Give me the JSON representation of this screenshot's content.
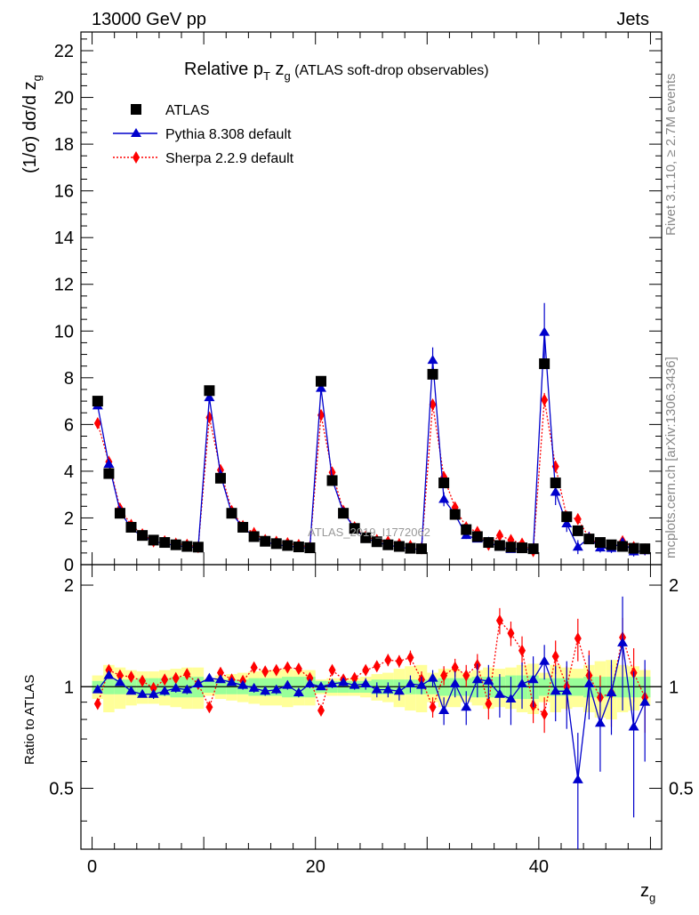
{
  "header": {
    "left": "13000 GeV pp",
    "right": "Jets"
  },
  "side_labels": {
    "rivet": "Rivet 3.1.10, ≥ 2.7M events",
    "mcplots": "mcplots.cern.ch [arXiv:1306.3436]"
  },
  "watermark": "ATLAS_2019_I1772062",
  "chart_data": [
    {
      "type": "scatter",
      "title_main": "Relative p",
      "title_sub": "T",
      "title_zg": " z",
      "title_zg_sub": "g",
      "title_rest": " (ATLAS soft-drop observables)",
      "ylabel": "(1/σ) dσ/d z",
      "ylabel_sub": "g",
      "xlabel": "z",
      "xlabel_sub": "g",
      "xlim": [
        -1,
        51
      ],
      "ylim": [
        0,
        22.8
      ],
      "yticks": [
        0,
        2,
        4,
        6,
        8,
        10,
        12,
        14,
        16,
        18,
        20,
        22
      ],
      "xticks": [
        0,
        20,
        40
      ],
      "x": [
        0.5,
        1.5,
        2.5,
        3.5,
        4.5,
        5.5,
        6.5,
        7.5,
        8.5,
        9.5,
        10.5,
        11.5,
        12.5,
        13.5,
        14.5,
        15.5,
        16.5,
        17.5,
        18.5,
        19.5,
        20.5,
        21.5,
        22.5,
        23.5,
        24.5,
        25.5,
        26.5,
        27.5,
        28.5,
        29.5,
        30.5,
        31.5,
        32.5,
        33.5,
        34.5,
        35.5,
        36.5,
        37.5,
        38.5,
        39.5,
        40.5,
        41.5,
        42.5,
        43.5,
        44.5,
        45.5,
        46.5,
        47.5,
        48.5,
        49.5
      ],
      "series": [
        {
          "name": "ATLAS",
          "color": "#000000",
          "marker": "square",
          "values": [
            7.0,
            3.9,
            2.2,
            1.6,
            1.25,
            1.05,
            0.95,
            0.85,
            0.78,
            0.75,
            7.45,
            3.7,
            2.2,
            1.6,
            1.2,
            1.0,
            0.9,
            0.82,
            0.76,
            0.72,
            7.85,
            3.6,
            2.2,
            1.55,
            1.15,
            0.98,
            0.85,
            0.78,
            0.7,
            0.68,
            8.15,
            3.5,
            2.15,
            1.5,
            1.2,
            0.95,
            0.82,
            0.75,
            0.72,
            0.68,
            8.6,
            3.5,
            2.05,
            1.45,
            1.1,
            0.95,
            0.85,
            0.78,
            0.7,
            0.68
          ]
        },
        {
          "name": "Pythia 8.308 default",
          "color": "#0000cc",
          "marker": "triangle",
          "line": "solid",
          "values": [
            6.8,
            4.3,
            2.3,
            1.55,
            1.2,
            1.0,
            0.9,
            0.82,
            0.76,
            0.72,
            7.15,
            3.85,
            2.2,
            1.6,
            1.2,
            0.98,
            0.85,
            0.8,
            0.74,
            0.7,
            7.55,
            3.65,
            2.25,
            1.55,
            1.15,
            0.95,
            0.84,
            0.75,
            0.68,
            0.65,
            8.75,
            2.8,
            2.15,
            1.25,
            1.1,
            0.98,
            0.75,
            0.65,
            0.7,
            0.62,
            9.95,
            3.1,
            1.75,
            0.75,
            1.15,
            0.72,
            0.7,
            0.95,
            0.55,
            0.6
          ],
          "errors": [
            0.05,
            0.05,
            0.04,
            0.03,
            0.03,
            0.03,
            0.03,
            0.03,
            0.03,
            0.03,
            0.1,
            0.07,
            0.05,
            0.04,
            0.04,
            0.03,
            0.03,
            0.03,
            0.03,
            0.03,
            0.15,
            0.1,
            0.06,
            0.05,
            0.04,
            0.04,
            0.04,
            0.04,
            0.04,
            0.04,
            0.55,
            0.3,
            0.2,
            0.15,
            0.12,
            0.1,
            0.1,
            0.1,
            0.1,
            0.1,
            1.25,
            0.55,
            0.35,
            0.3,
            0.25,
            0.2,
            0.2,
            0.2,
            0.2,
            0.2
          ]
        },
        {
          "name": "Sherpa 2.2.9 default",
          "color": "#ff0000",
          "marker": "diamond",
          "line": "dotted",
          "values": [
            6.05,
            4.4,
            2.4,
            1.7,
            1.3,
            1.0,
            1.0,
            0.9,
            0.85,
            0.75,
            6.3,
            4.05,
            2.3,
            1.65,
            1.35,
            1.05,
            0.98,
            0.92,
            0.84,
            0.75,
            6.4,
            3.95,
            2.3,
            1.6,
            1.2,
            1.05,
            0.98,
            0.88,
            0.8,
            0.7,
            6.85,
            3.75,
            2.45,
            1.6,
            1.4,
            0.85,
            1.25,
            1.05,
            0.9,
            0.58,
            7.05,
            4.2,
            2.05,
            1.95,
            1.15,
            0.85,
            0.8,
            1.0,
            0.75,
            0.65
          ],
          "errors": [
            0.05,
            0.05,
            0.04,
            0.03,
            0.03,
            0.03,
            0.03,
            0.03,
            0.03,
            0.03,
            0.08,
            0.06,
            0.05,
            0.04,
            0.04,
            0.03,
            0.03,
            0.03,
            0.03,
            0.03,
            0.1,
            0.08,
            0.06,
            0.05,
            0.04,
            0.04,
            0.04,
            0.04,
            0.04,
            0.04,
            0.2,
            0.15,
            0.12,
            0.1,
            0.1,
            0.1,
            0.1,
            0.1,
            0.1,
            0.1,
            0.3,
            0.25,
            0.2,
            0.2,
            0.15,
            0.15,
            0.15,
            0.15,
            0.15,
            0.15
          ]
        }
      ]
    },
    {
      "type": "scatter",
      "ylabel": "Ratio to ATLAS",
      "ylim": [
        0.33,
        2.3
      ],
      "yticks": [
        0.5,
        1,
        2
      ],
      "ytick_labels": [
        "0.5",
        "1",
        "2"
      ],
      "band_inner": [
        0.04,
        0.05,
        0.05,
        0.05,
        0.06,
        0.06,
        0.06,
        0.07,
        0.07,
        0.07,
        0.04,
        0.05,
        0.05,
        0.05,
        0.06,
        0.06,
        0.06,
        0.07,
        0.07,
        0.07,
        0.04,
        0.04,
        0.04,
        0.04,
        0.04,
        0.05,
        0.05,
        0.05,
        0.05,
        0.05,
        0.05,
        0.06,
        0.06,
        0.06,
        0.07,
        0.07,
        0.07,
        0.08,
        0.08,
        0.08,
        0.06,
        0.06,
        0.06,
        0.06,
        0.07,
        0.07,
        0.07,
        0.07,
        0.07,
        0.07
      ],
      "band_outer": [
        0.08,
        0.16,
        0.14,
        0.12,
        0.11,
        0.11,
        0.12,
        0.13,
        0.14,
        0.14,
        0.06,
        0.08,
        0.09,
        0.1,
        0.11,
        0.12,
        0.12,
        0.13,
        0.12,
        0.12,
        0.05,
        0.06,
        0.06,
        0.06,
        0.07,
        0.09,
        0.1,
        0.13,
        0.15,
        0.16,
        0.1,
        0.13,
        0.13,
        0.1,
        0.12,
        0.14,
        0.13,
        0.14,
        0.16,
        0.17,
        0.1,
        0.16,
        0.14,
        0.13,
        0.16,
        0.19,
        0.2,
        0.16,
        0.15,
        0.12
      ],
      "series": [
        {
          "name": "Pythia 8.308 default",
          "color": "#0000cc",
          "values": [
            0.98,
            1.08,
            1.03,
            0.97,
            0.95,
            0.95,
            0.97,
            0.99,
            0.98,
            1.02,
            1.06,
            1.05,
            1.03,
            1.01,
            0.99,
            0.97,
            0.98,
            1.01,
            0.96,
            1.02,
            1.0,
            1.02,
            1.03,
            1.01,
            1.02,
            0.98,
            0.98,
            0.97,
            1.02,
            1.01,
            1.06,
            0.85,
            1.02,
            0.87,
            1.05,
            1.04,
            0.95,
            0.92,
            1.02,
            1.05,
            1.19,
            0.97,
            0.97,
            0.53,
            1.02,
            0.78,
            0.96,
            1.35,
            0.76,
            0.9
          ],
          "errors": [
            0.02,
            0.02,
            0.02,
            0.02,
            0.02,
            0.03,
            0.03,
            0.03,
            0.03,
            0.03,
            0.02,
            0.02,
            0.02,
            0.03,
            0.03,
            0.03,
            0.03,
            0.03,
            0.03,
            0.03,
            0.02,
            0.03,
            0.03,
            0.03,
            0.04,
            0.05,
            0.05,
            0.06,
            0.06,
            0.06,
            0.06,
            0.08,
            0.09,
            0.1,
            0.12,
            0.12,
            0.14,
            0.15,
            0.16,
            0.18,
            0.14,
            0.18,
            0.22,
            0.2,
            0.22,
            0.22,
            0.24,
            0.5,
            0.35,
            0.3
          ]
        },
        {
          "name": "Sherpa 2.2.9 default",
          "color": "#ff0000",
          "values": [
            0.89,
            1.12,
            1.08,
            1.07,
            1.04,
            0.99,
            1.05,
            1.06,
            1.09,
            1.02,
            0.87,
            1.1,
            1.05,
            1.04,
            1.14,
            1.11,
            1.12,
            1.14,
            1.13,
            1.06,
            0.85,
            1.12,
            1.05,
            1.06,
            1.12,
            1.15,
            1.2,
            1.19,
            1.22,
            1.05,
            0.87,
            1.08,
            1.14,
            1.08,
            1.16,
            0.89,
            1.57,
            1.44,
            1.28,
            0.88,
            0.83,
            1.23,
            1.0,
            1.39,
            1.08,
            0.93,
            0.96,
            1.4,
            1.1,
            0.93
          ],
          "errors": [
            0.02,
            0.02,
            0.02,
            0.02,
            0.02,
            0.02,
            0.02,
            0.02,
            0.02,
            0.02,
            0.02,
            0.02,
            0.02,
            0.03,
            0.03,
            0.03,
            0.03,
            0.03,
            0.03,
            0.03,
            0.02,
            0.02,
            0.03,
            0.03,
            0.03,
            0.04,
            0.05,
            0.05,
            0.06,
            0.06,
            0.06,
            0.07,
            0.07,
            0.08,
            0.09,
            0.09,
            0.14,
            0.12,
            0.13,
            0.1,
            0.1,
            0.14,
            0.15,
            0.2,
            0.2,
            0.15,
            0.2,
            0.2,
            0.2,
            0.2
          ]
        }
      ]
    }
  ]
}
